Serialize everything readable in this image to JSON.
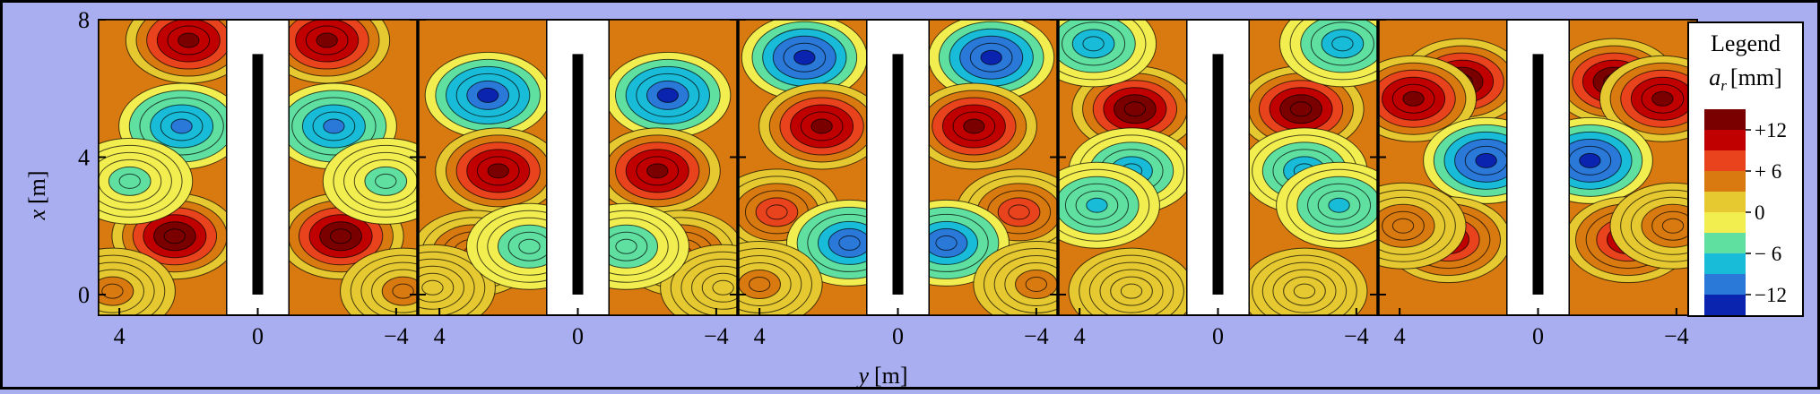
{
  "chart_data": {
    "type": "heatmap",
    "title": "",
    "xlabel": "y [m]",
    "ylabel": "x [m]",
    "ylabel_var": "x",
    "ylabel_unit": "[m]",
    "xlabel_var": "y",
    "xlabel_unit": "[m]",
    "xlim": [
      4.6,
      -4.6
    ],
    "ylim": [
      -0.6,
      8
    ],
    "y_ticks": [
      0,
      4,
      8
    ],
    "y_tick_labels": [
      "0",
      "4",
      "8"
    ],
    "x_ticks": [
      4,
      0,
      -4
    ],
    "x_tick_labels": [
      "4",
      "0",
      "−4"
    ],
    "grid": false,
    "legend": {
      "position": "right",
      "title": "Legend",
      "var": "a",
      "sub": "r",
      "unit": "[mm]",
      "labels": [
        "+12",
        "+ 6",
        "0",
        "− 6",
        "−12"
      ],
      "colors": [
        "#7a0000",
        "#c00000",
        "#e8431c",
        "#d97a10",
        "#e6c830",
        "#f2ee50",
        "#5fe0a0",
        "#19bcd8",
        "#2a78d8",
        "#0a24b0"
      ]
    },
    "wall": {
      "y": 0,
      "x_from": 0,
      "x_to": 7
    },
    "panels": [
      {
        "id": 1,
        "centers": [
          {
            "x": 7.4,
            "y": 2.0,
            "a": 11
          },
          {
            "x": 4.9,
            "y": 2.2,
            "a": -8
          },
          {
            "x": 1.7,
            "y": 2.4,
            "a": 12
          },
          {
            "x": 0.1,
            "y": 4.2,
            "a": 3
          },
          {
            "x": 3.3,
            "y": 3.7,
            "a": -3
          }
        ]
      },
      {
        "id": 2,
        "centers": [
          {
            "x": 5.8,
            "y": 2.6,
            "a": -10
          },
          {
            "x": 3.6,
            "y": 2.3,
            "a": 11
          },
          {
            "x": 1.2,
            "y": 3.0,
            "a": 5
          },
          {
            "x": 0.2,
            "y": 4.2,
            "a": 2
          },
          {
            "x": 1.4,
            "y": 1.4,
            "a": -4
          }
        ]
      },
      {
        "id": 3,
        "centers": [
          {
            "x": 6.9,
            "y": 2.7,
            "a": -11
          },
          {
            "x": 4.9,
            "y": 2.2,
            "a": 11
          },
          {
            "x": 2.4,
            "y": 3.5,
            "a": 7
          },
          {
            "x": 1.5,
            "y": 1.4,
            "a": -9
          },
          {
            "x": 0.3,
            "y": 4.0,
            "a": 3
          }
        ]
      },
      {
        "id": 4,
        "centers": [
          {
            "x": 5.4,
            "y": 2.4,
            "a": 12
          },
          {
            "x": 7.3,
            "y": 3.6,
            "a": -6
          },
          {
            "x": 3.6,
            "y": 2.5,
            "a": -7
          },
          {
            "x": 2.6,
            "y": 3.5,
            "a": -5
          },
          {
            "x": 0.1,
            "y": 2.5,
            "a": 2
          }
        ]
      },
      {
        "id": 5,
        "centers": [
          {
            "x": 6.2,
            "y": 2.2,
            "a": 12
          },
          {
            "x": 5.7,
            "y": 3.6,
            "a": 11
          },
          {
            "x": 3.9,
            "y": 1.5,
            "a": -11
          },
          {
            "x": 1.6,
            "y": 2.6,
            "a": 9
          },
          {
            "x": 2.0,
            "y": 3.9,
            "a": 4
          }
        ]
      }
    ]
  }
}
